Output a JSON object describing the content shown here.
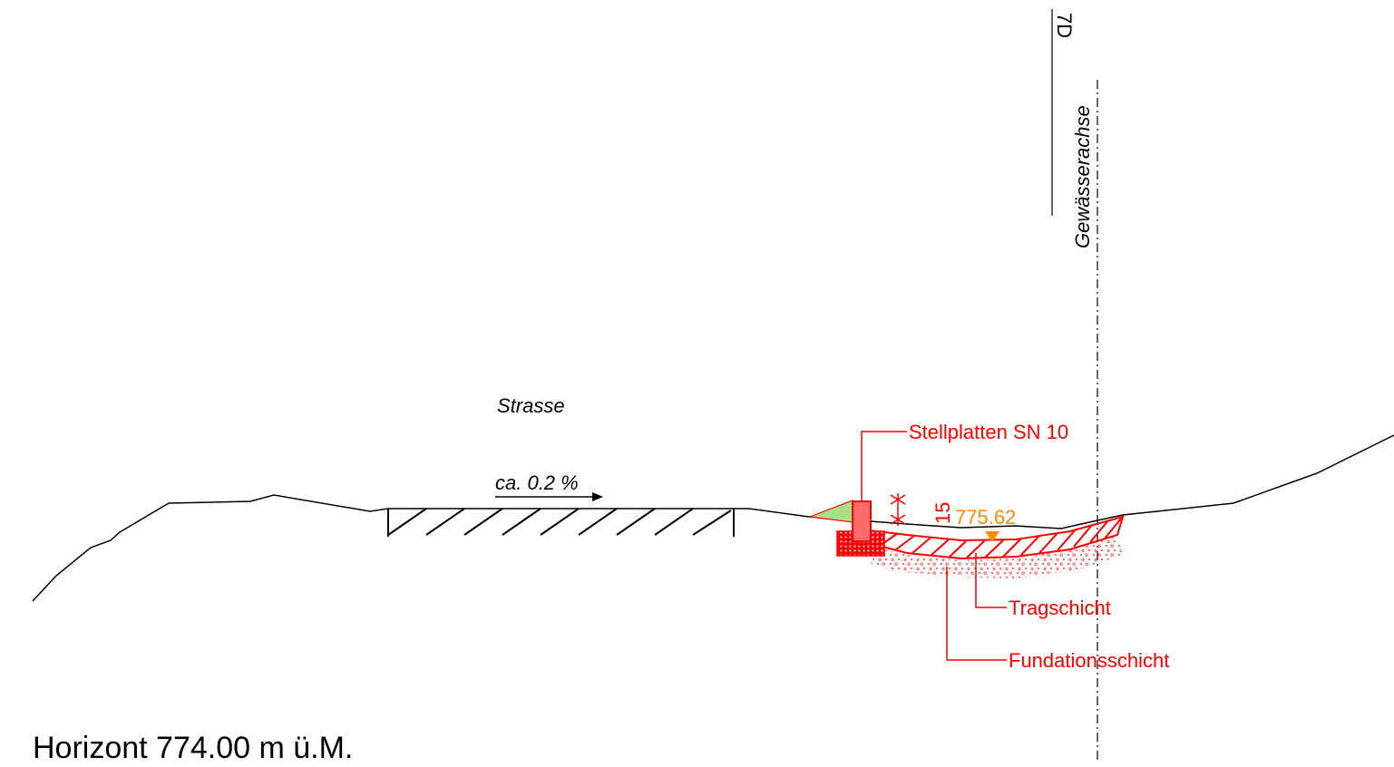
{
  "labels": {
    "profile_id": "7D",
    "axis": "Gewässerachse",
    "road": "Strasse",
    "slope": "ca. 0.2 %",
    "curb": "Stellplatten SN 10",
    "dimension": "15",
    "elevation": "775.62",
    "base_layer": "Tragschicht",
    "foundation_layer": "Fundationsschicht",
    "horizon": "Horizont 774.00 m ü.M."
  },
  "colors": {
    "line": "#000000",
    "construction": "#ff0000",
    "elevation": "#ff8c00",
    "curb_fill": "#ff6b6b",
    "green_wedge": "#a8e08a"
  }
}
